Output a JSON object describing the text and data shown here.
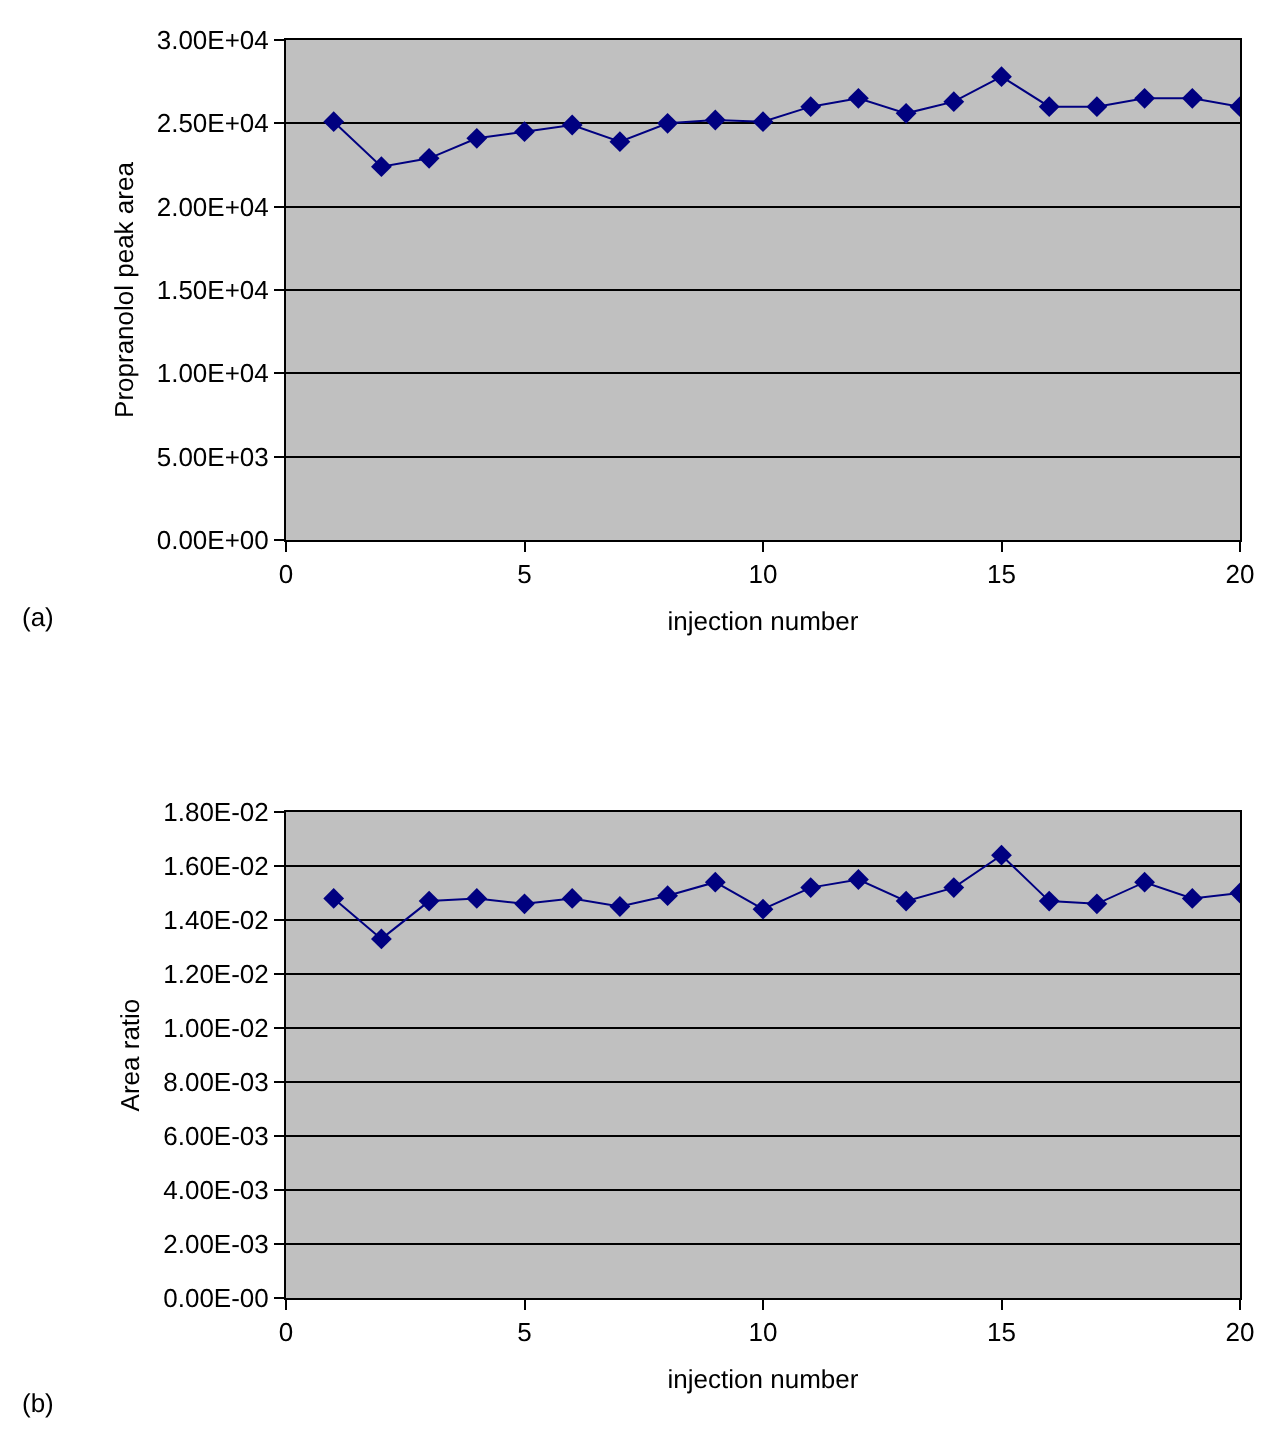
{
  "chart_data": [
    {
      "type": "line",
      "xlabel": "injection number",
      "ylabel": "Propranolol peak area",
      "annotations": [
        "(a)"
      ],
      "x": [
        1,
        2,
        3,
        4,
        5,
        6,
        7,
        8,
        9,
        10,
        11,
        12,
        13,
        14,
        15,
        16,
        17,
        18,
        19,
        20
      ],
      "series": [
        {
          "color": "#000080",
          "values": [
            25100,
            22400,
            22900,
            24100,
            24500,
            24900,
            23900,
            25000,
            25200,
            25100,
            26000,
            26500,
            25600,
            26300,
            27800,
            26000,
            26000,
            26500,
            26500,
            26000
          ]
        }
      ],
      "xlim": [
        0,
        20
      ],
      "xticks": [
        0,
        5,
        10,
        15,
        20
      ],
      "ylim": [
        0,
        30000
      ],
      "yticks": [
        {
          "value": 0,
          "label": "0.00E+00"
        },
        {
          "value": 5000,
          "label": "5.00E+03"
        },
        {
          "value": 10000,
          "label": "1.00E+04"
        },
        {
          "value": 15000,
          "label": "1.50E+04"
        },
        {
          "value": 20000,
          "label": "2.00E+04"
        },
        {
          "value": 25000,
          "label": "2.50E+04"
        },
        {
          "value": 30000,
          "label": "3.00E+04"
        }
      ],
      "grid": "y",
      "marker": "diamond",
      "line_style": "solid"
    },
    {
      "type": "line",
      "xlabel": "injection number",
      "ylabel": "Area ratio",
      "annotations": [
        "(b)"
      ],
      "x": [
        1,
        2,
        3,
        4,
        5,
        6,
        7,
        8,
        9,
        10,
        11,
        12,
        13,
        14,
        15,
        16,
        17,
        18,
        19,
        20
      ],
      "series": [
        {
          "color": "#000080",
          "values": [
            0.0148,
            0.0133,
            0.0147,
            0.0148,
            0.0146,
            0.0148,
            0.0145,
            0.0149,
            0.0154,
            0.0144,
            0.0152,
            0.0155,
            0.0147,
            0.0152,
            0.0164,
            0.0147,
            0.0146,
            0.0154,
            0.0148,
            0.015
          ]
        }
      ],
      "xlim": [
        0,
        20
      ],
      "xticks": [
        0,
        5,
        10,
        15,
        20
      ],
      "ylim": [
        0,
        0.018
      ],
      "yticks": [
        {
          "value": 0,
          "label": "0.00E-00"
        },
        {
          "value": 0.002,
          "label": "2.00E-03"
        },
        {
          "value": 0.004,
          "label": "4.00E-03"
        },
        {
          "value": 0.006,
          "label": "6.00E-03"
        },
        {
          "value": 0.008,
          "label": "8.00E-03"
        },
        {
          "value": 0.01,
          "label": "1.00E-02"
        },
        {
          "value": 0.012,
          "label": "1.20E-02"
        },
        {
          "value": 0.014,
          "label": "1.40E-02"
        },
        {
          "value": 0.016,
          "label": "1.60E-02"
        },
        {
          "value": 0.018,
          "label": "1.80E-02"
        }
      ],
      "grid": "y",
      "marker": "diamond",
      "line_style": "solid"
    }
  ]
}
